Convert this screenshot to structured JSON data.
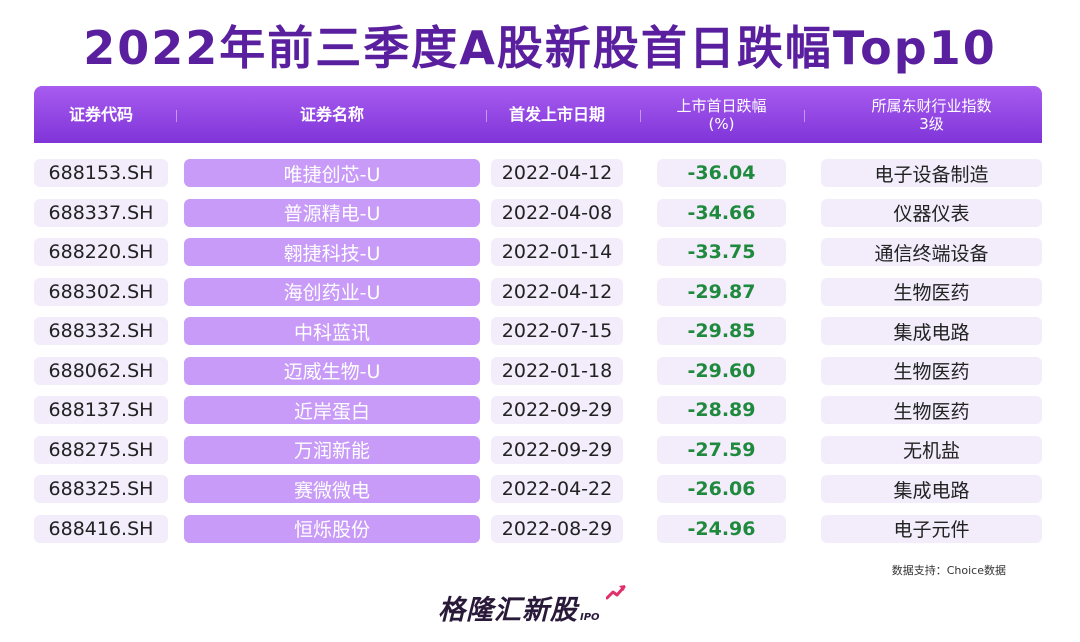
{
  "title": "2022年前三季度A股新股首日跌幅Top10",
  "headers": {
    "code": "证券代码",
    "name": "证券名称",
    "date": "首发上市日期",
    "drop_line1": "上市首日跌幅",
    "drop_line2": "(%)",
    "industry_line1": "所属东财行业指数",
    "industry_line2": "3级"
  },
  "rows": [
    {
      "code": "688153.SH",
      "name": "唯捷创芯-U",
      "date": "2022-04-12",
      "drop": "-36.04",
      "industry": "电子设备制造"
    },
    {
      "code": "688337.SH",
      "name": "普源精电-U",
      "date": "2022-04-08",
      "drop": "-34.66",
      "industry": "仪器仪表"
    },
    {
      "code": "688220.SH",
      "name": "翱捷科技-U",
      "date": "2022-01-14",
      "drop": "-33.75",
      "industry": "通信终端设备"
    },
    {
      "code": "688302.SH",
      "name": "海创药业-U",
      "date": "2022-04-12",
      "drop": "-29.87",
      "industry": "生物医药"
    },
    {
      "code": "688332.SH",
      "name": "中科蓝讯",
      "date": "2022-07-15",
      "drop": "-29.85",
      "industry": "集成电路"
    },
    {
      "code": "688062.SH",
      "name": "迈威生物-U",
      "date": "2022-01-18",
      "drop": "-29.60",
      "industry": "生物医药"
    },
    {
      "code": "688137.SH",
      "name": "近岸蛋白",
      "date": "2022-09-29",
      "drop": "-28.89",
      "industry": "生物医药"
    },
    {
      "code": "688275.SH",
      "name": "万润新能",
      "date": "2022-09-29",
      "drop": "-27.59",
      "industry": "无机盐"
    },
    {
      "code": "688325.SH",
      "name": "赛微微电",
      "date": "2022-04-22",
      "drop": "-26.06",
      "industry": "集成电路"
    },
    {
      "code": "688416.SH",
      "name": "恒烁股份",
      "date": "2022-08-29",
      "drop": "-24.96",
      "industry": "电子元件"
    }
  ],
  "source": "数据支持：Choice数据",
  "logo": {
    "main": "格隆汇新股",
    "sub": "IPO"
  },
  "colors": {
    "title": "#5a1f9e",
    "header": "#8b3fe0",
    "name_cell": "#c79bf7",
    "cell": "#f2ecfb",
    "drop_text": "#1f8a3d"
  }
}
